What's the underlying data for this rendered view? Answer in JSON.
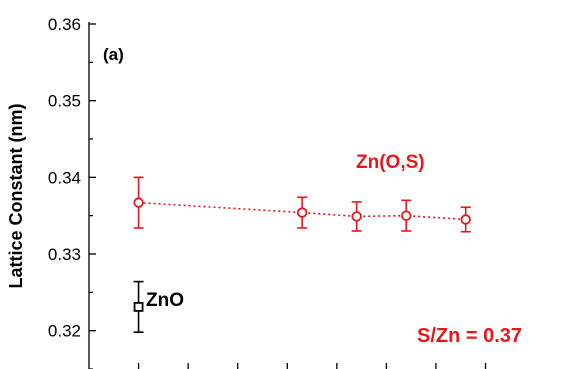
{
  "chart_data": {
    "type": "scatter",
    "panel_label": "(a)",
    "ylabel": "Lattice Constant (nm)",
    "xlabel": "",
    "ylim": [
      0.315,
      0.36
    ],
    "yticks": [
      0.32,
      0.33,
      0.34,
      0.35,
      0.36
    ],
    "ytick_labels": [
      "0.32",
      "0.33",
      "0.34",
      "0.35",
      "0.36"
    ],
    "xlim": [
      0,
      9.2
    ],
    "xticks": [
      1,
      2,
      3,
      4,
      5,
      6,
      7,
      8
    ],
    "grid": false,
    "series": [
      {
        "name": "Zn(O,S)",
        "color": "#e8171d",
        "marker": "circle-open",
        "line": "dotted",
        "points": [
          {
            "x": 1.0,
            "y": 0.3367,
            "err": 0.0033
          },
          {
            "x": 4.3,
            "y": 0.3354,
            "err": 0.002
          },
          {
            "x": 5.4,
            "y": 0.3349,
            "err": 0.0019
          },
          {
            "x": 6.4,
            "y": 0.335,
            "err": 0.002
          },
          {
            "x": 7.6,
            "y": 0.3345,
            "err": 0.0016
          }
        ]
      },
      {
        "name": "ZnO",
        "color": "#000000",
        "marker": "square-open",
        "line": "none",
        "points": [
          {
            "x": 1.0,
            "y": 0.3231,
            "err": 0.0033
          }
        ]
      }
    ],
    "annotations": {
      "ratio": "S/Zn = 0.37"
    }
  }
}
